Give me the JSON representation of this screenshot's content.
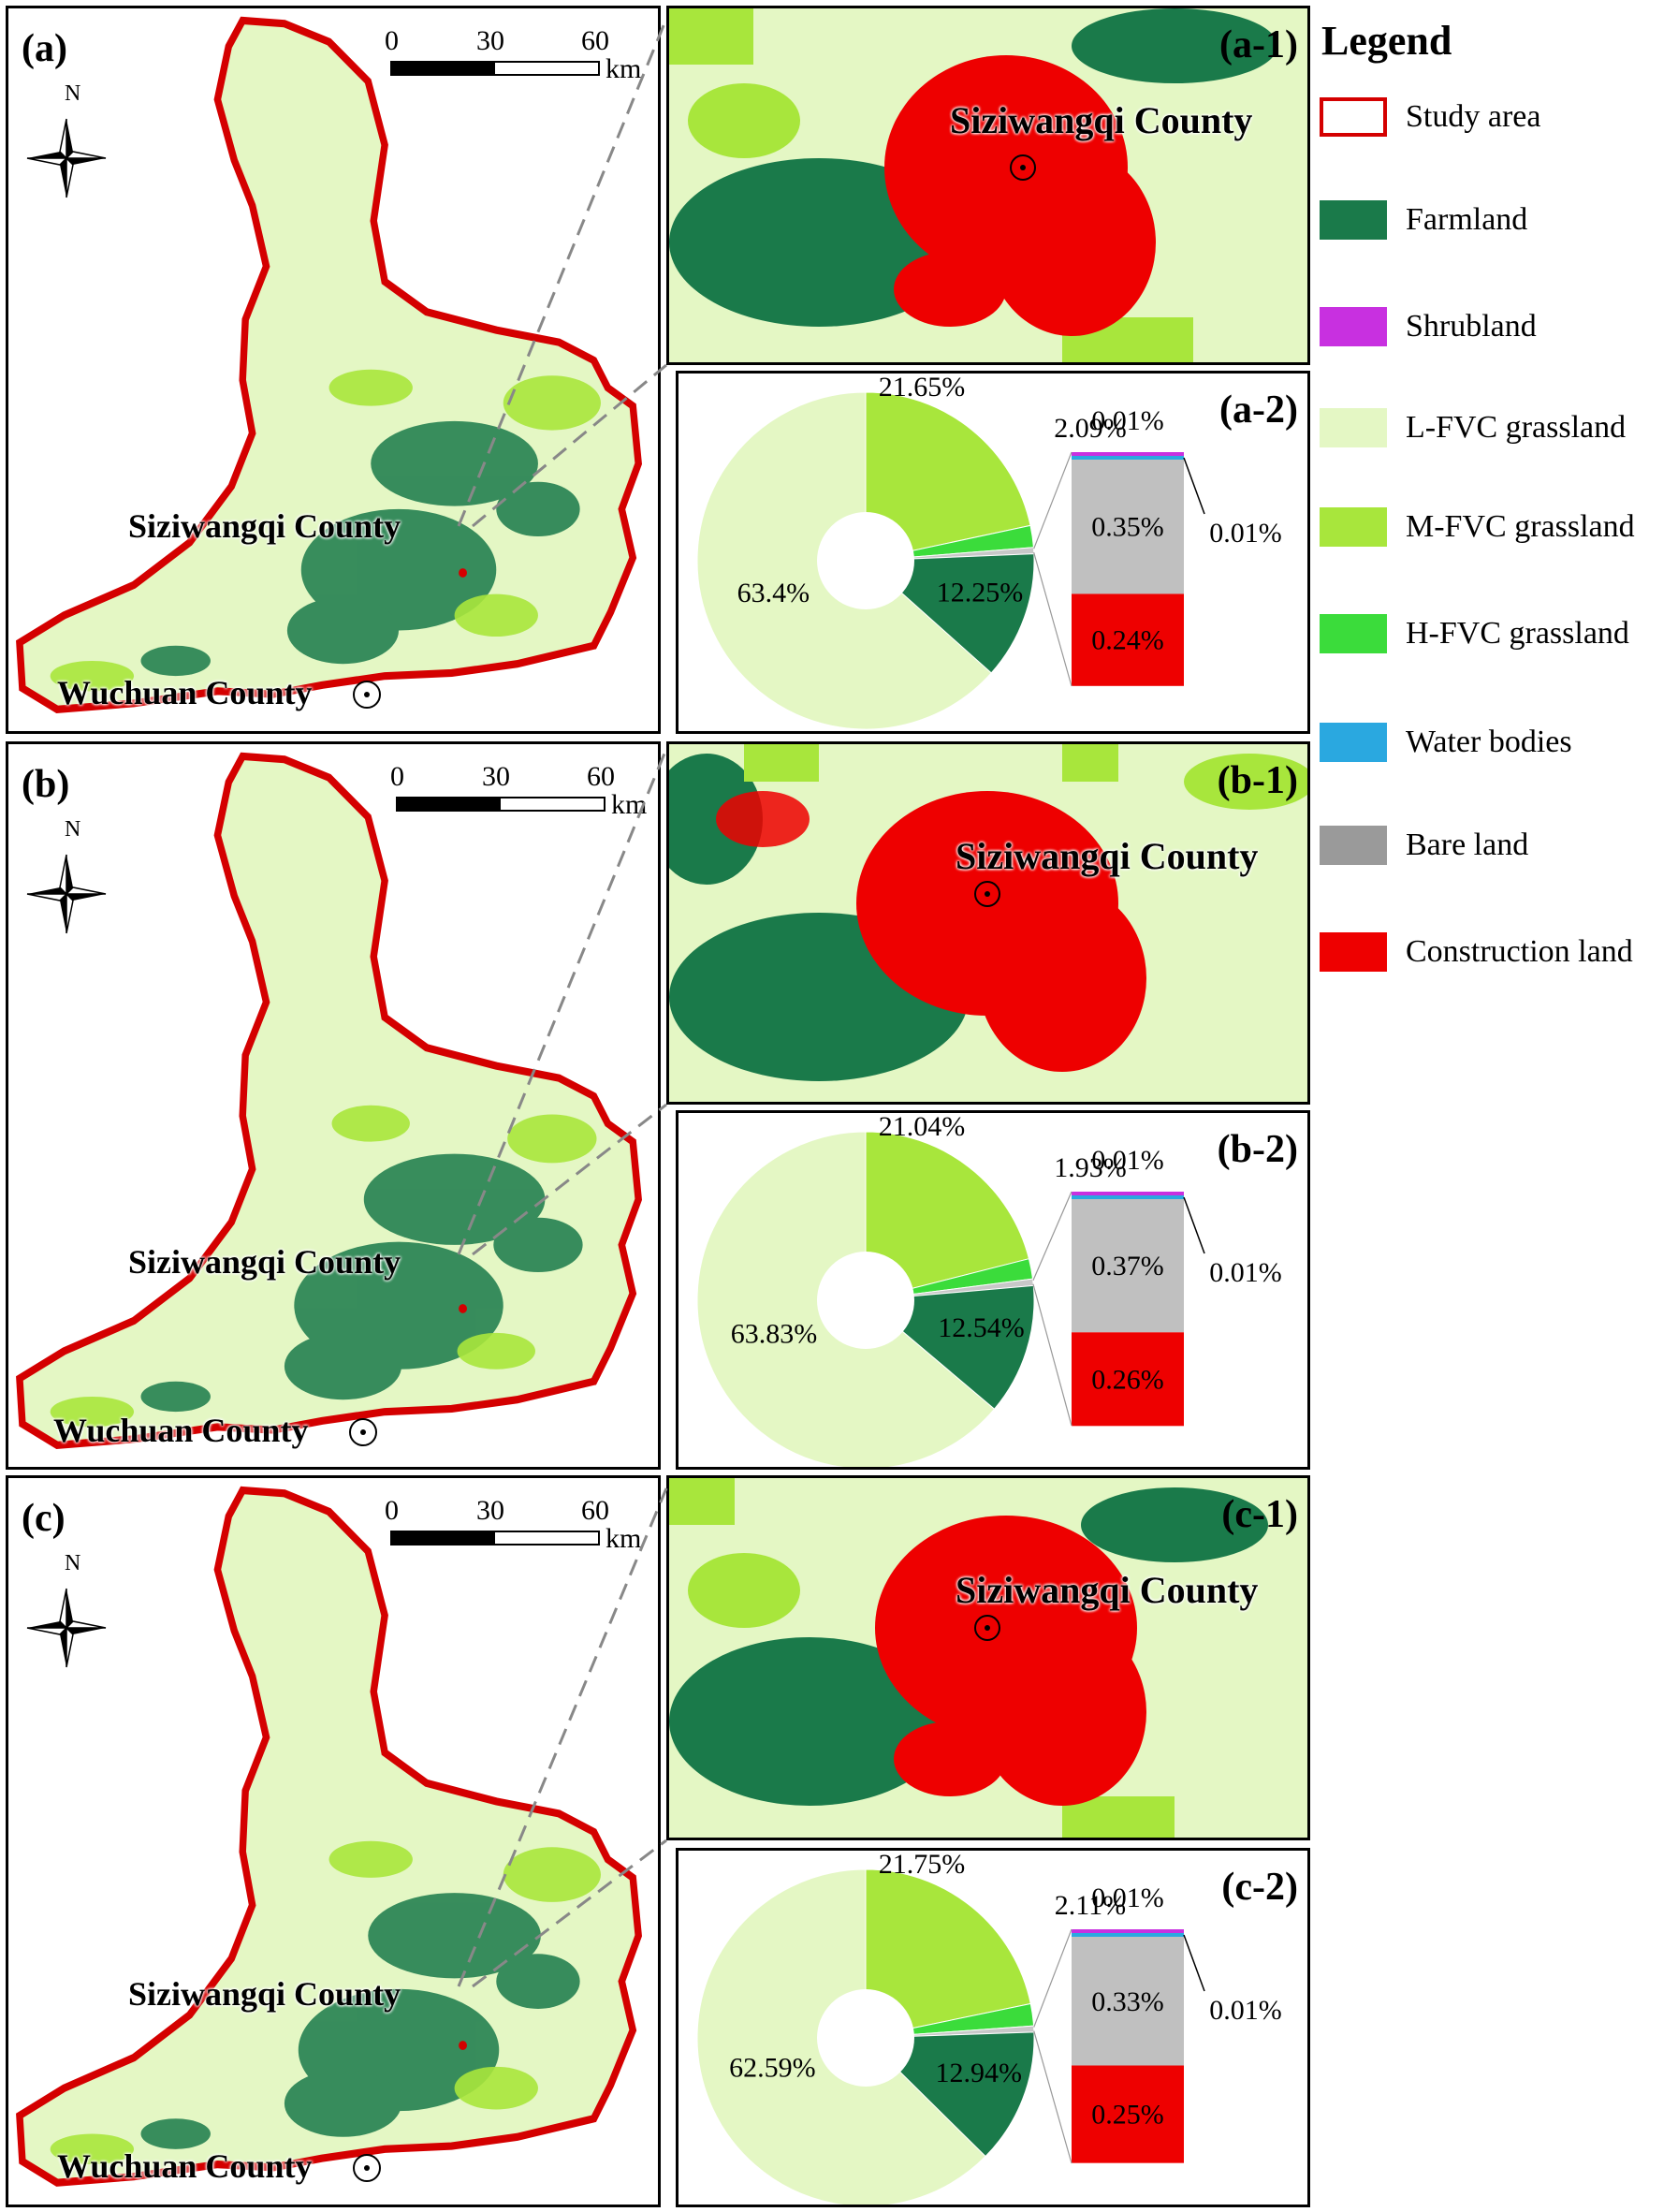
{
  "colors": {
    "study_area": "#d40000",
    "farmland": "#1a7a4a",
    "shrubland": "#c830e0",
    "lfvc": "#e4f7c4",
    "mfvc": "#a8e63c",
    "hfvc": "#3bdc3b",
    "water": "#2aa8e0",
    "bare": "#9a9a9a",
    "construction": "#ee0000"
  },
  "legend": {
    "title": "Legend",
    "items": [
      {
        "label": "Study area",
        "color": "#ffffff",
        "border": "#d40000",
        "icon": "study-area-outline"
      },
      {
        "label": "Farmland",
        "color": "#1a7a4a"
      },
      {
        "label": "Shrubland",
        "color": "#c830e0"
      },
      {
        "label": "L-FVC grassland",
        "color": "#e4f7c4"
      },
      {
        "label": "M-FVC grassland",
        "color": "#a8e63c"
      },
      {
        "label": "H-FVC grassland",
        "color": "#3bdc3b"
      },
      {
        "label": "Water bodies",
        "color": "#2aa8e0"
      },
      {
        "label": "Bare land",
        "color": "#9a9a9a"
      },
      {
        "label": "Construction land",
        "color": "#ee0000"
      }
    ]
  },
  "panels": [
    {
      "label": "(a)",
      "zoom_label": "(a-1)",
      "chart_label": "(a-2)",
      "north": "N",
      "scale_ticks": [
        "0",
        "30",
        "60"
      ],
      "scale_unit": "km",
      "town_main": "Siziwangqi County",
      "town_south": "Wuchuan County",
      "zoom_town": "Siziwangqi County",
      "pie": {
        "slices": [
          {
            "name": "L-FVC grassland",
            "value": 63.4,
            "label": "63.4%"
          },
          {
            "name": "M-FVC grassland",
            "value": 21.65,
            "label": "21.65%"
          },
          {
            "name": "H-FVC grassland",
            "value": 2.09,
            "label": "2.09%"
          },
          {
            "name": "Other",
            "value": 0.61
          },
          {
            "name": "Farmland",
            "value": 12.25,
            "label": "12.25%"
          }
        ],
        "bar": [
          {
            "name": "Shrubland",
            "value": 0.01,
            "label": "0.01%"
          },
          {
            "name": "Water bodies",
            "value": 0.01,
            "label": "0.01%"
          },
          {
            "name": "Bare land",
            "value": 0.35,
            "label": "0.35%"
          },
          {
            "name": "Construction land",
            "value": 0.24,
            "label": "0.24%"
          }
        ]
      }
    },
    {
      "label": "(b)",
      "zoom_label": "(b-1)",
      "chart_label": "(b-2)",
      "north": "N",
      "scale_ticks": [
        "0",
        "30",
        "60"
      ],
      "scale_unit": "km",
      "town_main": "Siziwangqi County",
      "town_south": "Wuchuan County",
      "zoom_town": "Siziwangqi County",
      "pie": {
        "slices": [
          {
            "name": "L-FVC grassland",
            "value": 63.83,
            "label": "63.83%"
          },
          {
            "name": "M-FVC grassland",
            "value": 21.04,
            "label": "21.04%"
          },
          {
            "name": "H-FVC grassland",
            "value": 1.93,
            "label": "1.93%"
          },
          {
            "name": "Other",
            "value": 0.65
          },
          {
            "name": "Farmland",
            "value": 12.54,
            "label": "12.54%"
          }
        ],
        "bar": [
          {
            "name": "Shrubland",
            "value": 0.01,
            "label": "0.01%"
          },
          {
            "name": "Water bodies",
            "value": 0.01,
            "label": "0.01%"
          },
          {
            "name": "Bare land",
            "value": 0.37,
            "label": "0.37%"
          },
          {
            "name": "Construction land",
            "value": 0.26,
            "label": "0.26%"
          }
        ]
      }
    },
    {
      "label": "(c)",
      "zoom_label": "(c-1)",
      "chart_label": "(c-2)",
      "north": "N",
      "scale_ticks": [
        "0",
        "30",
        "60"
      ],
      "scale_unit": "km",
      "town_main": "Siziwangqi County",
      "town_south": "Wuchuan County",
      "zoom_town": "Siziwangqi County",
      "pie": {
        "slices": [
          {
            "name": "L-FVC grassland",
            "value": 62.59,
            "label": "62.59%"
          },
          {
            "name": "M-FVC grassland",
            "value": 21.75,
            "label": "21.75%"
          },
          {
            "name": "H-FVC grassland",
            "value": 2.11,
            "label": "2.11%"
          },
          {
            "name": "Other",
            "value": 0.6
          },
          {
            "name": "Farmland",
            "value": 12.94,
            "label": "12.94%"
          }
        ],
        "bar": [
          {
            "name": "Shrubland",
            "value": 0.01,
            "label": "0.01%"
          },
          {
            "name": "Water bodies",
            "value": 0.01,
            "label": "0.01%"
          },
          {
            "name": "Bare land",
            "value": 0.33,
            "label": "0.33%"
          },
          {
            "name": "Construction land",
            "value": 0.25,
            "label": "0.25%"
          }
        ]
      }
    }
  ]
}
